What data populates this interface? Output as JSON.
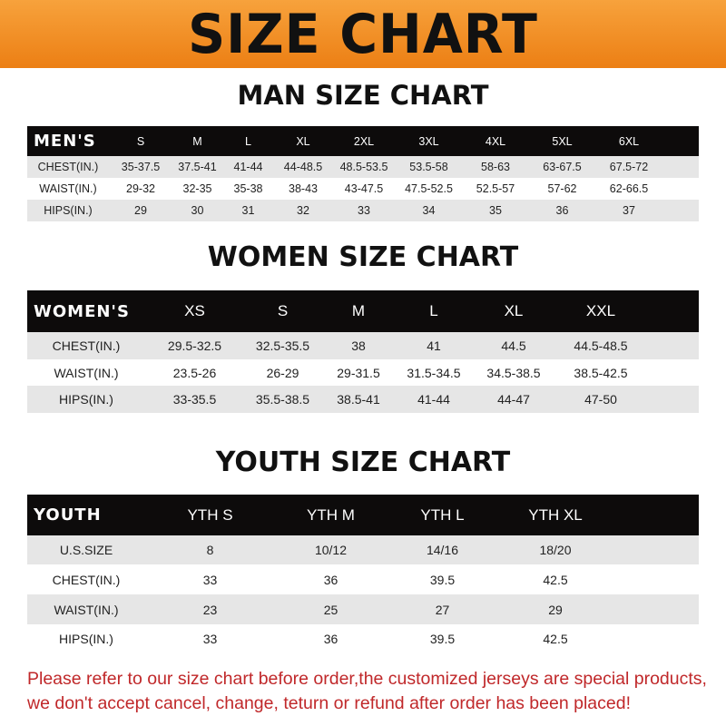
{
  "banner": "SIZE CHART",
  "men": {
    "title": "MAN SIZE CHART",
    "header": [
      "MEN'S",
      "S",
      "M",
      "L",
      "XL",
      "2XL",
      "3XL",
      "4XL",
      "5XL",
      "6XL"
    ],
    "rows": [
      [
        "CHEST(IN.)",
        "35-37.5",
        "37.5-41",
        "41-44",
        "44-48.5",
        "48.5-53.5",
        "53.5-58",
        "58-63",
        "63-67.5",
        "67.5-72"
      ],
      [
        "WAIST(IN.)",
        "29-32",
        "32-35",
        "35-38",
        "38-43",
        "43-47.5",
        "47.5-52.5",
        "52.5-57",
        "57-62",
        "62-66.5"
      ],
      [
        "HIPS(IN.)",
        "29",
        "30",
        "31",
        "32",
        "33",
        "34",
        "35",
        "36",
        "37"
      ]
    ]
  },
  "women": {
    "title": "WOMEN SIZE CHART",
    "header": [
      "WOMEN'S",
      "XS",
      "S",
      "M",
      "L",
      "XL",
      "XXL"
    ],
    "rows": [
      [
        "CHEST(IN.)",
        "29.5-32.5",
        "32.5-35.5",
        "38",
        "41",
        "44.5",
        "44.5-48.5"
      ],
      [
        "WAIST(IN.)",
        "23.5-26",
        "26-29",
        "29-31.5",
        "31.5-34.5",
        "34.5-38.5",
        "38.5-42.5"
      ],
      [
        "HIPS(IN.)",
        "33-35.5",
        "35.5-38.5",
        "38.5-41",
        "41-44",
        "44-47",
        "47-50"
      ]
    ]
  },
  "youth": {
    "title": "YOUTH SIZE CHART",
    "header": [
      "YOUTH",
      "YTH S",
      "YTH M",
      "YTH L",
      "YTH XL"
    ],
    "rows": [
      [
        "U.S.SIZE",
        "8",
        "10/12",
        "14/16",
        "18/20"
      ],
      [
        "CHEST(IN.)",
        "33",
        "36",
        "39.5",
        "42.5"
      ],
      [
        "WAIST(IN.)",
        "23",
        "25",
        "27",
        "29"
      ],
      [
        "HIPS(IN.)",
        "33",
        "36",
        "39.5",
        "42.5"
      ]
    ]
  },
  "note": "Please refer to our size chart before order,the customized jerseys are special products, we don't accept cancel, change, teturn or refund after order has been placed!",
  "colors": {
    "banner": "#ec7f14",
    "header_row": "#0d0b0b",
    "stripe": "#e6e6e6",
    "note": "#c0282a"
  }
}
